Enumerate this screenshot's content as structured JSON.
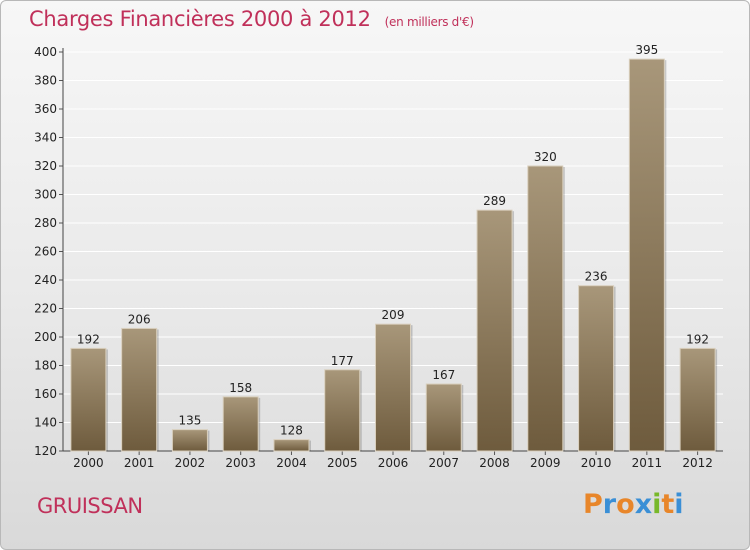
{
  "header": {
    "title": "Charges Financières 2000 à 2012",
    "subtitle": "(en milliers d'€)"
  },
  "footer": {
    "commune": "GRUISSAN",
    "logo": [
      "P",
      "r",
      "o",
      "x",
      "i",
      "t",
      "i"
    ],
    "logo_colors": [
      "#e8862a",
      "#3a8fd6",
      "#e8862a",
      "#3a8fd6",
      "#78b82a",
      "#e8862a",
      "#3a8fd6"
    ]
  },
  "colors": {
    "bar_top": "#a8977a",
    "bar_bottom": "#6e5b3d",
    "grid": "#ffffff",
    "axis_text": "#222222"
  },
  "chart_data": {
    "type": "bar",
    "categories": [
      "2000",
      "2001",
      "2002",
      "2003",
      "2004",
      "2005",
      "2006",
      "2007",
      "2008",
      "2009",
      "2010",
      "2011",
      "2012"
    ],
    "values": [
      192,
      206,
      135,
      158,
      128,
      177,
      209,
      167,
      289,
      320,
      236,
      395,
      192
    ],
    "title": "Charges Financières 2000 à 2012",
    "subtitle": "(en milliers d'€)",
    "ylim": [
      120,
      400
    ],
    "yticks": [
      120,
      140,
      160,
      180,
      200,
      220,
      240,
      260,
      280,
      300,
      320,
      340,
      360,
      380,
      400
    ],
    "grid": true,
    "data_labels": true
  }
}
